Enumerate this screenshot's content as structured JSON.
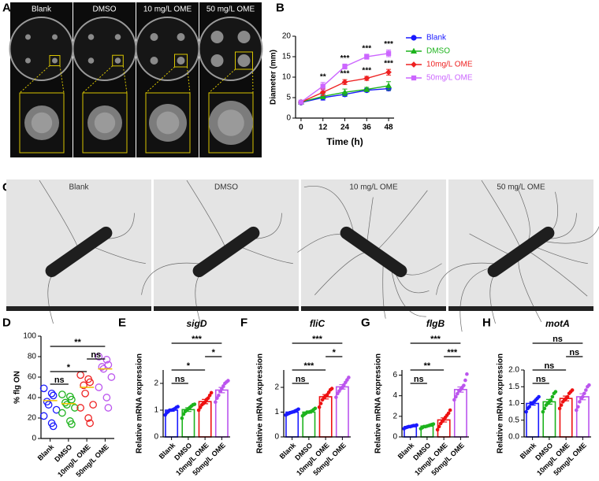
{
  "panel_labels": [
    "A",
    "B",
    "C",
    "D",
    "E",
    "F",
    "G",
    "H"
  ],
  "photos_a": {
    "labels": [
      "Blank",
      "DMSO",
      "10 mg/L OME",
      "50 mg/L OME"
    ]
  },
  "photos_c": {
    "labels": [
      "Blank",
      "DMSO",
      "10 mg/L OME",
      "50 mg/L OME"
    ]
  },
  "chart_data": [
    {
      "type": "line",
      "ylabel": "Diameter (mm)",
      "xlabel": "Time (h)",
      "x": [
        0,
        12,
        24,
        36,
        48
      ],
      "xlim": [
        -3,
        51
      ],
      "xticks": [
        0,
        12,
        24,
        36,
        48
      ],
      "ylim": [
        0,
        20
      ],
      "yticks": [
        0,
        5,
        10,
        15,
        20
      ],
      "legend": "right",
      "series": [
        {
          "name": "Blank",
          "color": "#1a1aff",
          "marker": "circle",
          "values": [
            3.8,
            5.0,
            5.8,
            6.8,
            7.2
          ],
          "errors": [
            0.3,
            0.6,
            0.5,
            0.4,
            0.5
          ],
          "annotations": [
            null,
            null,
            null,
            null,
            null
          ]
        },
        {
          "name": "DMSO",
          "color": "#1db31d",
          "marker": "triangle",
          "values": [
            3.9,
            5.3,
            6.3,
            7.0,
            7.9
          ],
          "errors": [
            0.3,
            0.6,
            0.8,
            0.5,
            1.0
          ],
          "annotations": [
            null,
            null,
            null,
            null,
            null
          ]
        },
        {
          "name": "10mg/L OME",
          "color": "#ee2222",
          "marker": "diamond",
          "values": [
            3.9,
            6.3,
            8.8,
            9.7,
            11.2
          ],
          "errors": [
            0.3,
            0.8,
            0.6,
            0.5,
            0.7
          ],
          "annotations": [
            null,
            null,
            "***",
            "***",
            "***"
          ]
        },
        {
          "name": "50mg/L OME",
          "color": "#cc66ff",
          "marker": "square",
          "values": [
            3.9,
            7.8,
            12.6,
            15.0,
            15.8
          ],
          "errors": [
            0.3,
            0.9,
            0.6,
            0.6,
            0.8
          ],
          "annotations": [
            null,
            "**",
            "***",
            "***",
            "***"
          ]
        }
      ]
    },
    {
      "type": "dot",
      "ylabel": "% flg ON",
      "categories": [
        "Blank",
        "DMSO",
        "10mg/L OME",
        "50mg/L OME"
      ],
      "colors": [
        "#1a1aff",
        "#1db31d",
        "#ee2222",
        "#bb55ee"
      ],
      "points": [
        [
          49,
          44,
          42,
          36,
          33,
          28,
          22,
          15,
          12
        ],
        [
          43,
          41,
          38,
          35,
          33,
          30,
          25,
          17,
          14
        ],
        [
          62,
          58,
          55,
          52,
          44,
          33,
          30,
          20,
          15
        ],
        [
          80,
          77,
          72,
          70,
          68,
          60,
          50,
          40,
          30
        ]
      ],
      "means": [
        37,
        34,
        50,
        68
      ],
      "ylim": [
        0,
        100
      ],
      "yticks": [
        0,
        20,
        40,
        60,
        80,
        100
      ],
      "brackets": [
        {
          "from": 0,
          "to": 1,
          "text": "ns"
        },
        {
          "from": 0,
          "to": 2,
          "text": "*"
        },
        {
          "from": 2,
          "to": 3,
          "text": "ns"
        },
        {
          "from": 0,
          "to": 3,
          "text": "**"
        }
      ]
    },
    {
      "type": "bar",
      "title": "sigD",
      "ylabel": "Relative mRNA expression",
      "categories": [
        "Blank",
        "DMSO",
        "10mg/L OME",
        "50mg/L OME"
      ],
      "colors": [
        "#1a1aff",
        "#1db31d",
        "#ee1111",
        "#bb55ee"
      ],
      "values": [
        1.0,
        1.02,
        1.32,
        1.75
      ],
      "errors": [
        0.04,
        0.07,
        0.08,
        0.1
      ],
      "points": [
        [
          0.82,
          0.9,
          0.95,
          1.0,
          1.0,
          1.02,
          1.05,
          1.1,
          1.13
        ],
        [
          0.7,
          0.85,
          0.95,
          1.0,
          1.05,
          1.1,
          1.15,
          1.2,
          1.22
        ],
        [
          1.0,
          1.1,
          1.2,
          1.25,
          1.3,
          1.4,
          1.45,
          1.55,
          1.65
        ],
        [
          1.3,
          1.45,
          1.55,
          1.7,
          1.8,
          1.9,
          2.0,
          2.05,
          2.1
        ]
      ],
      "ylim": [
        0,
        2.5
      ],
      "yticks": [
        0,
        1,
        2
      ],
      "brackets": [
        {
          "from": 0,
          "to": 1,
          "text": "ns"
        },
        {
          "from": 0,
          "to": 2,
          "text": "*"
        },
        {
          "from": 2,
          "to": 3,
          "text": "*"
        },
        {
          "from": 0,
          "to": 3,
          "text": "***"
        }
      ]
    },
    {
      "type": "bar",
      "title": "fliC",
      "ylabel": "Relative mRNA expression",
      "categories": [
        "Blank",
        "DMSO",
        "10mg/L OME",
        "50mg/L OME"
      ],
      "colors": [
        "#1a1aff",
        "#1db31d",
        "#ee1111",
        "#bb55ee"
      ],
      "values": [
        1.0,
        1.0,
        1.62,
        2.02
      ],
      "errors": [
        0.03,
        0.04,
        0.09,
        0.09
      ],
      "points": [
        [
          0.88,
          0.92,
          0.95,
          0.98,
          1.0,
          1.02,
          1.05,
          1.08,
          1.12
        ],
        [
          0.85,
          0.9,
          0.95,
          1.0,
          1.0,
          1.02,
          1.05,
          1.1,
          1.15
        ],
        [
          1.2,
          1.35,
          1.5,
          1.6,
          1.65,
          1.7,
          1.8,
          1.9,
          1.95
        ],
        [
          1.6,
          1.75,
          1.85,
          1.95,
          2.0,
          2.1,
          2.2,
          2.3,
          2.4
        ]
      ],
      "ylim": [
        0,
        2.7
      ],
      "yticks": [
        0,
        1,
        2
      ],
      "brackets": [
        {
          "from": 0,
          "to": 1,
          "text": "ns"
        },
        {
          "from": 0,
          "to": 2,
          "text": "***"
        },
        {
          "from": 2,
          "to": 3,
          "text": "*"
        },
        {
          "from": 0,
          "to": 3,
          "text": "***"
        }
      ]
    },
    {
      "type": "bar",
      "title": "flgB",
      "ylabel": "Relative mRNA expression",
      "categories": [
        "Blank",
        "DMSO",
        "10mg/L OME",
        "50mg/L OME"
      ],
      "colors": [
        "#1a1aff",
        "#1db31d",
        "#ee1111",
        "#bb55ee"
      ],
      "values": [
        1.0,
        1.05,
        1.65,
        4.6
      ],
      "errors": [
        0.04,
        0.05,
        0.2,
        0.25
      ],
      "points": [
        [
          0.8,
          0.9,
          0.95,
          1.0,
          1.0,
          1.05,
          1.1,
          1.1,
          1.15
        ],
        [
          0.8,
          0.9,
          1.0,
          1.0,
          1.05,
          1.1,
          1.15,
          1.2,
          1.25
        ],
        [
          0.7,
          1.0,
          1.3,
          1.5,
          1.7,
          1.9,
          2.1,
          2.3,
          2.6
        ],
        [
          3.6,
          3.9,
          4.2,
          4.5,
          4.6,
          4.8,
          5.0,
          5.5,
          6.1
        ]
      ],
      "ylim": [
        0,
        6.5
      ],
      "yticks": [
        0,
        2,
        4,
        6
      ],
      "brackets": [
        {
          "from": 0,
          "to": 1,
          "text": "ns"
        },
        {
          "from": 0,
          "to": 2,
          "text": "**"
        },
        {
          "from": 2,
          "to": 3,
          "text": "***"
        },
        {
          "from": 0,
          "to": 3,
          "text": "***"
        }
      ]
    },
    {
      "type": "bar",
      "title": "motA",
      "ylabel": "Relative mRNA expression",
      "categories": [
        "Blank",
        "DMSO",
        "10mg/L OME",
        "50mg/L OME"
      ],
      "colors": [
        "#1a1aff",
        "#1db31d",
        "#ee1111",
        "#bb55ee"
      ],
      "values": [
        1.0,
        1.05,
        1.15,
        1.2
      ],
      "errors": [
        0.05,
        0.07,
        0.07,
        0.09
      ],
      "points": [
        [
          0.75,
          0.85,
          0.9,
          1.0,
          1.0,
          1.05,
          1.1,
          1.15,
          1.2
        ],
        [
          0.75,
          0.85,
          0.95,
          1.0,
          1.05,
          1.1,
          1.2,
          1.3,
          1.35
        ],
        [
          0.85,
          0.95,
          1.05,
          1.1,
          1.15,
          1.2,
          1.3,
          1.35,
          1.4
        ],
        [
          0.8,
          0.9,
          1.05,
          1.15,
          1.2,
          1.3,
          1.4,
          1.5,
          1.55
        ]
      ],
      "ylim": [
        0,
        2
      ],
      "yticks": [
        {
          "value": 0,
          "label": "0.0"
        },
        0.5,
        {
          "value": 1,
          "label": "1.0"
        },
        1.5,
        {
          "value": 2,
          "label": "2.0"
        }
      ],
      "brackets": [
        {
          "from": 0,
          "to": 1,
          "text": "ns"
        },
        {
          "from": 0,
          "to": 2,
          "text": "ns"
        },
        {
          "from": 2,
          "to": 3,
          "text": "ns"
        },
        {
          "from": 0,
          "to": 3,
          "text": "ns"
        }
      ]
    }
  ]
}
